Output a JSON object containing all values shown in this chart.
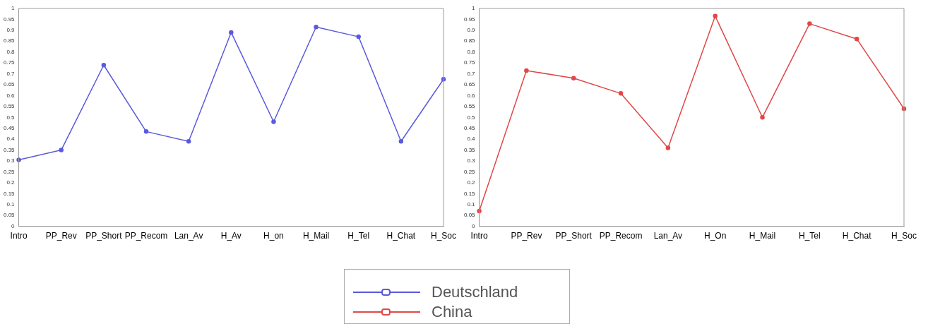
{
  "chart_data": [
    {
      "type": "line",
      "legend": "bottom",
      "marker": "circle",
      "line_style": "solid",
      "categories": [
        "Intro",
        "PP_Rev",
        "PP_Short",
        "PP_Recom",
        "Lan_Av",
        "H_Av",
        "H_on",
        "H_Mail",
        "H_Tel",
        "H_Chat",
        "H_Soc"
      ],
      "ylim": [
        0,
        1
      ],
      "yticks": [
        0,
        0.05,
        0.1,
        0.15,
        0.2,
        0.25,
        0.3,
        0.35,
        0.4,
        0.45,
        0.5,
        0.55,
        0.6,
        0.65,
        0.7,
        0.75,
        0.8,
        0.85,
        0.9,
        0.95,
        1
      ],
      "series": [
        {
          "name": "Deutschland",
          "color": "#5a5ade",
          "values": [
            0.305,
            0.35,
            0.74,
            0.435,
            0.39,
            0.89,
            0.48,
            0.915,
            0.87,
            0.39,
            0.675
          ]
        }
      ]
    },
    {
      "type": "line",
      "legend": "bottom",
      "marker": "circle",
      "line_style": "solid",
      "categories": [
        "Intro",
        "PP_Rev",
        "PP_Short",
        "PP_Recom",
        "Lan_Av",
        "H_On",
        "H_Mail",
        "H_Tel",
        "H_Chat",
        "H_Soc"
      ],
      "ylim": [
        0,
        1
      ],
      "yticks": [
        0,
        0.05,
        0.1,
        0.15,
        0.2,
        0.25,
        0.3,
        0.35,
        0.4,
        0.45,
        0.5,
        0.55,
        0.6,
        0.65,
        0.7,
        0.75,
        0.8,
        0.85,
        0.9,
        0.95,
        1
      ],
      "series": [
        {
          "name": "China",
          "color": "#e04848",
          "values": [
            0.07,
            0.715,
            0.68,
            0.61,
            0.36,
            0.965,
            0.5,
            0.93,
            0.86,
            0.54
          ]
        }
      ]
    }
  ]
}
